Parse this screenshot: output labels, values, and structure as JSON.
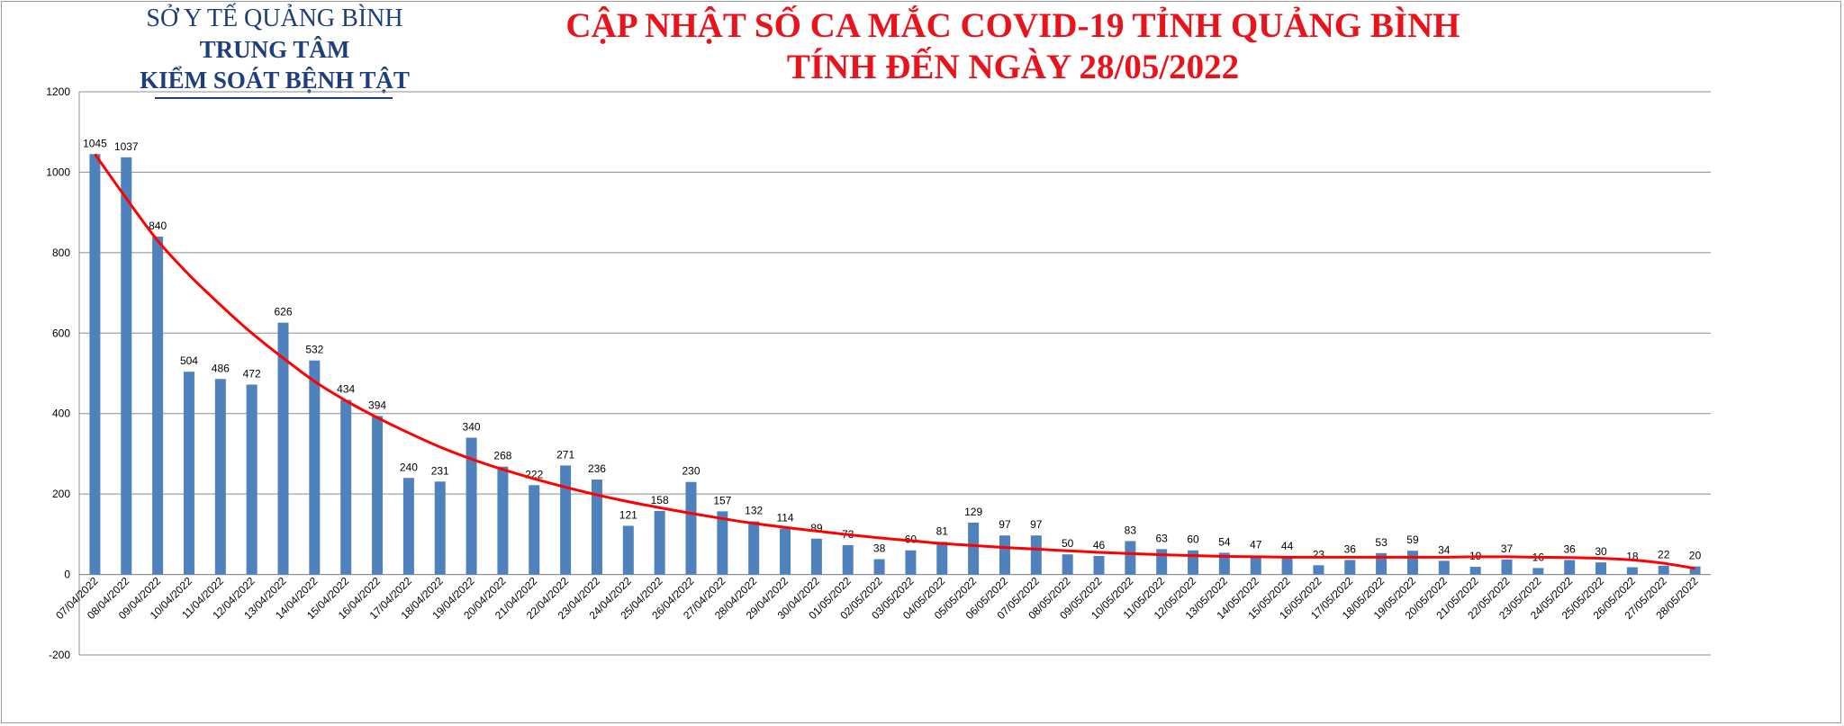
{
  "header": {
    "org_line1": "SỞ Y TẾ QUẢNG BÌNH",
    "org_line2": "TRUNG TÂM",
    "org_line3": "KIỂM SOÁT BỆNH TẬT",
    "title_line1": "CẬP NHẬT SỐ CA MẮC COVID-19 TỈNH QUẢNG BÌNH",
    "title_line2": "TÍNH ĐẾN NGÀY 28/05/2022",
    "title_color": "#e8131b",
    "org_color": "#1f3f7a"
  },
  "chart_data": {
    "type": "bar",
    "title": "CẬP NHẬT SỐ CA MẮC COVID-19 TỈNH QUẢNG BÌNH TÍNH ĐẾN NGÀY 28/05/2022",
    "xlabel": "",
    "ylabel": "",
    "ylim": [
      -200,
      1200
    ],
    "yticks": [
      -200,
      0,
      200,
      400,
      600,
      800,
      1000,
      1200
    ],
    "grid": true,
    "legend": "none",
    "bar_color": "#4f81bd",
    "trendline": {
      "type": "polynomial",
      "color": "#ff0000"
    },
    "categories": [
      "07/04/2022",
      "08/04/2022",
      "09/04/2022",
      "10/04/2022",
      "11/04/2022",
      "12/04/2022",
      "13/04/2022",
      "14/04/2022",
      "15/04/2022",
      "16/04/2022",
      "17/04/2022",
      "18/04/2022",
      "19/04/2022",
      "20/04/2022",
      "21/04/2022",
      "22/04/2022",
      "23/04/2022",
      "24/04/2022",
      "25/04/2022",
      "26/04/2022",
      "27/04/2022",
      "28/04/2022",
      "29/04/2022",
      "30/04/2022",
      "01/05/2022",
      "02/05/2022",
      "03/05/2022",
      "04/05/2022",
      "05/05/2022",
      "06/05/2022",
      "07/05/2022",
      "08/05/2022",
      "09/05/2022",
      "10/05/2022",
      "11/05/2022",
      "12/05/2022",
      "13/05/2022",
      "14/05/2022",
      "15/05/2022",
      "16/05/2022",
      "17/05/2022",
      "18/05/2022",
      "19/05/2022",
      "20/05/2022",
      "21/05/2022",
      "22/05/2022",
      "23/05/2022",
      "24/05/2022",
      "25/05/2022",
      "26/05/2022",
      "27/05/2022",
      "28/05/2022"
    ],
    "values": [
      1045,
      1037,
      840,
      504,
      486,
      472,
      626,
      532,
      434,
      394,
      240,
      231,
      340,
      268,
      222,
      271,
      236,
      121,
      158,
      230,
      157,
      132,
      114,
      89,
      73,
      38,
      60,
      81,
      129,
      97,
      97,
      50,
      46,
      83,
      63,
      60,
      54,
      47,
      44,
      23,
      36,
      53,
      59,
      34,
      19,
      37,
      16,
      36,
      30,
      18,
      22,
      20
    ],
    "trend_values": [
      1045,
      935,
      830,
      745,
      670,
      600,
      538,
      480,
      432,
      390,
      352,
      317,
      287,
      261,
      238,
      217,
      198,
      181,
      166,
      152,
      139,
      127,
      117,
      108,
      99,
      91,
      84,
      77,
      72,
      67,
      63,
      59,
      55,
      52,
      49,
      47,
      45,
      44,
      43,
      43,
      43,
      43,
      43,
      43,
      44,
      44,
      43,
      42,
      40,
      36,
      28,
      15
    ]
  }
}
